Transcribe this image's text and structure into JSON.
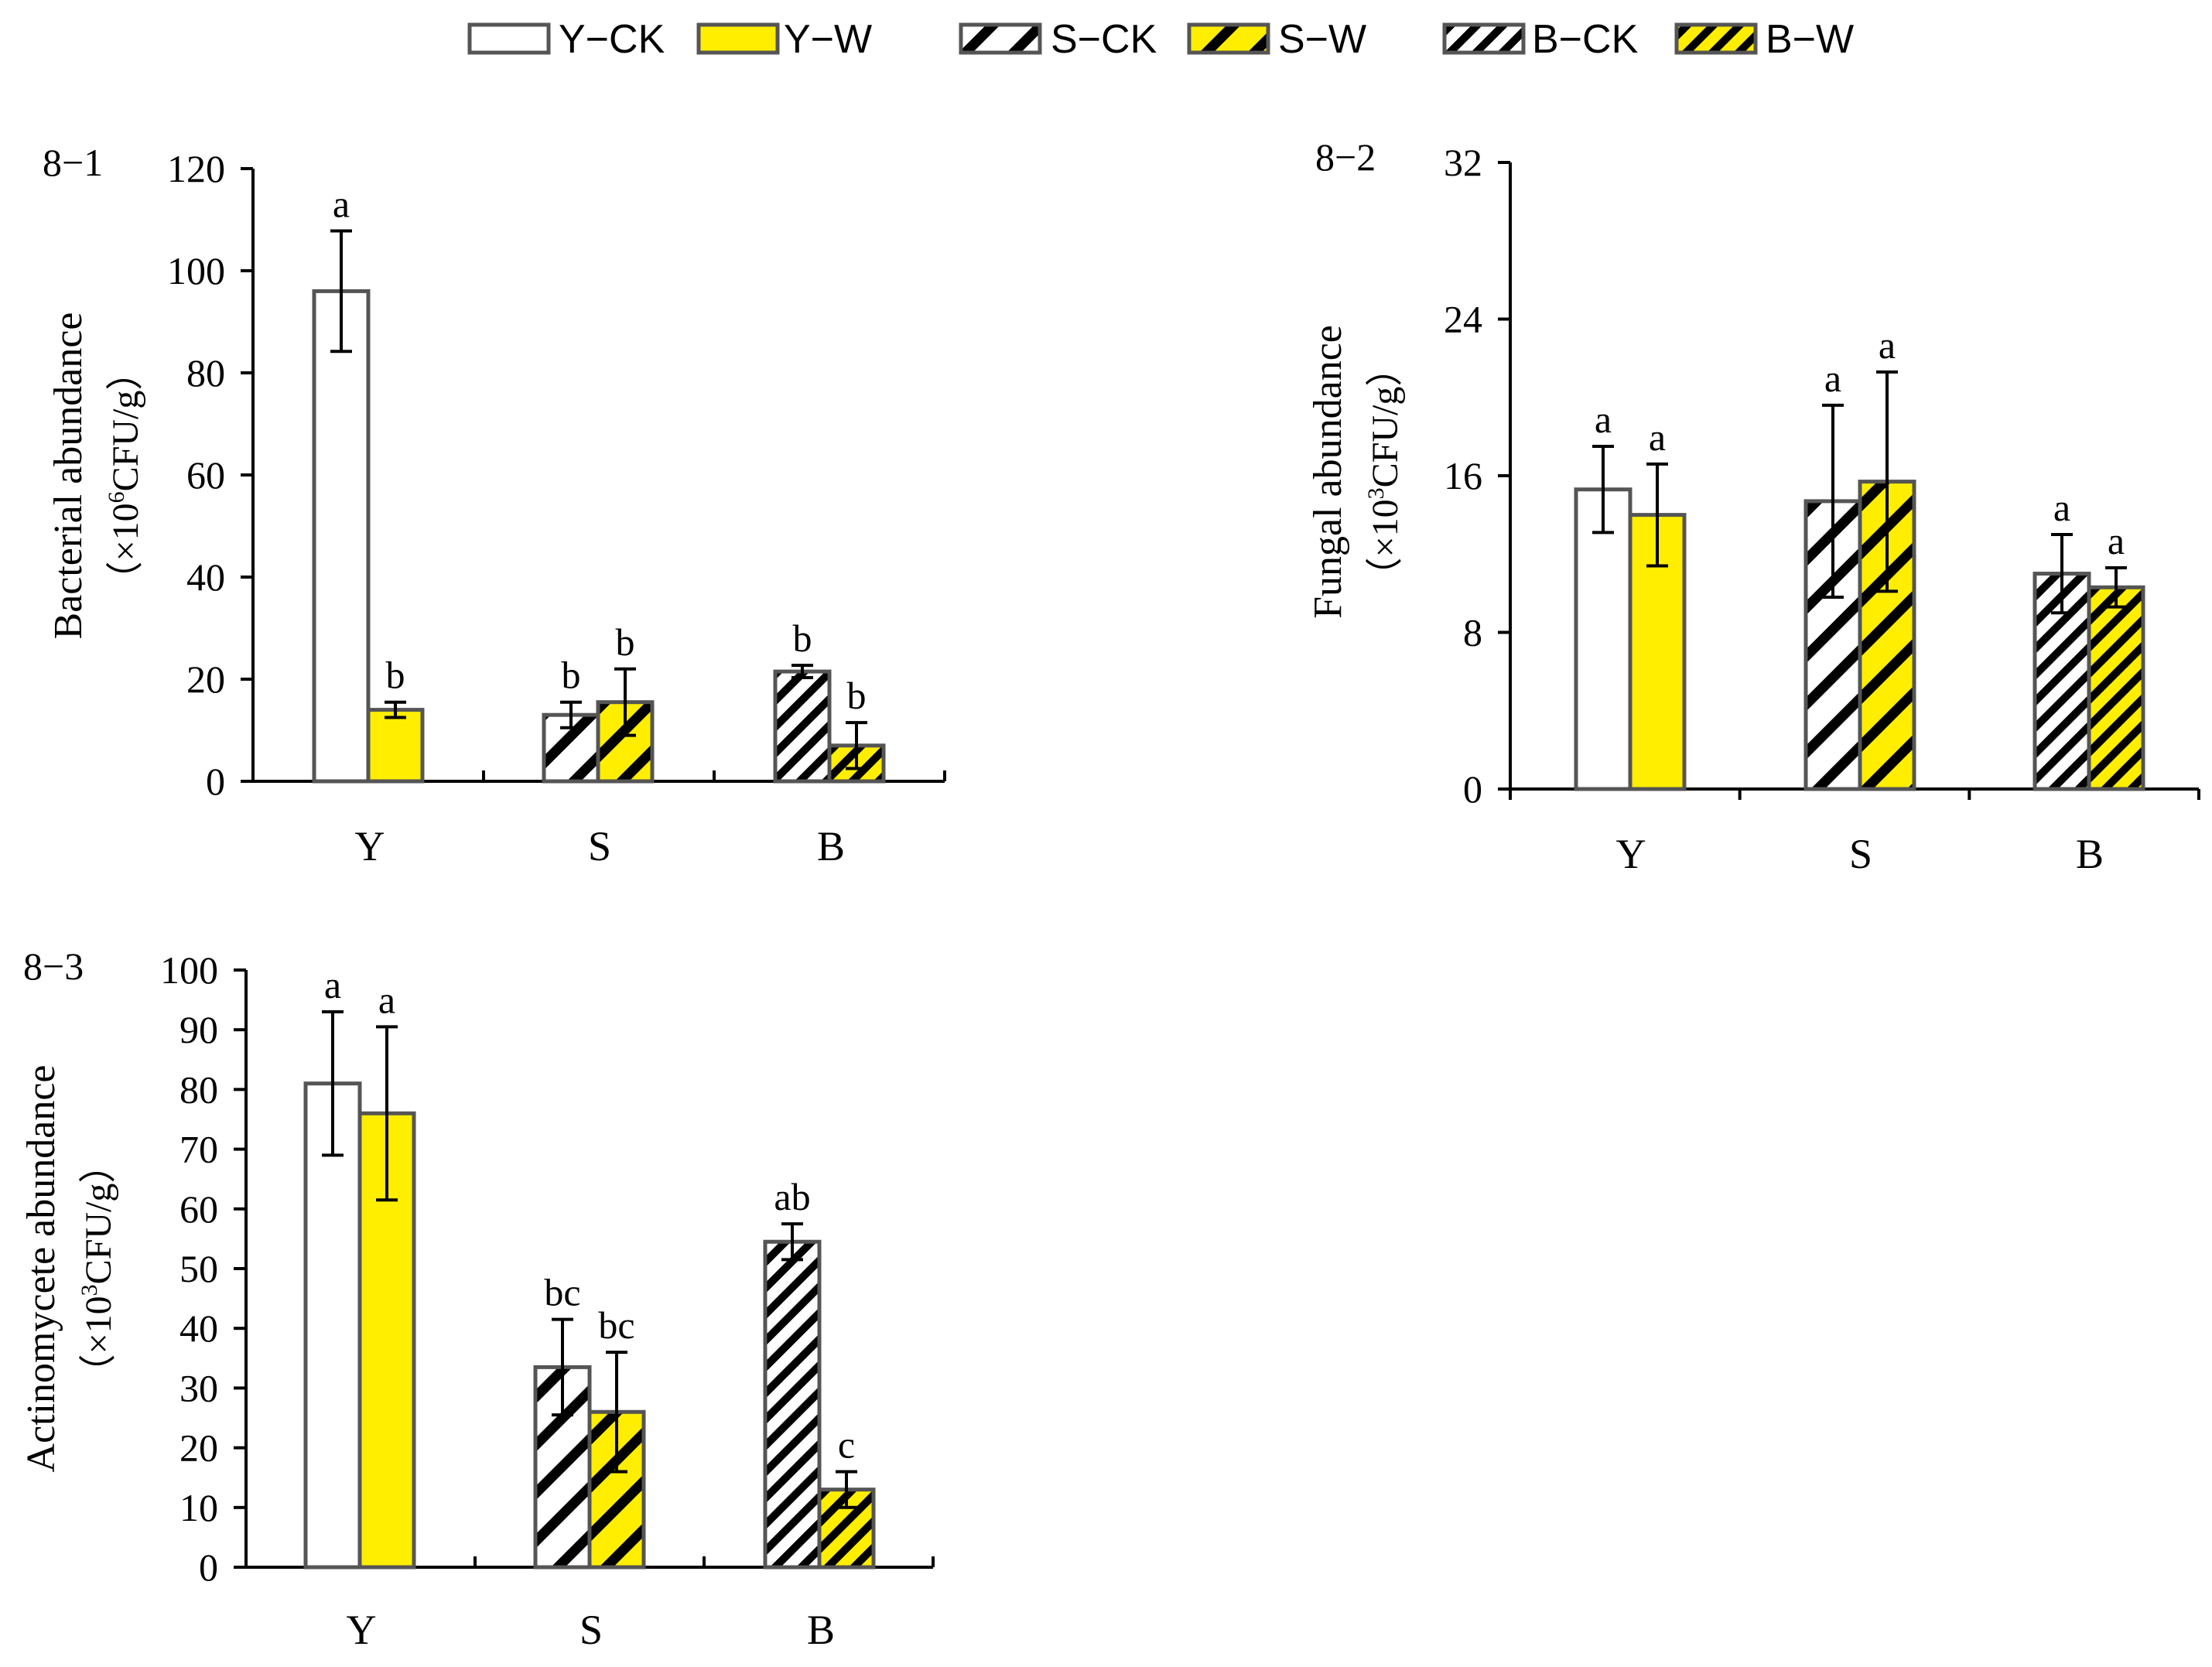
{
  "legend": [
    {
      "label": "Y−CK",
      "fill": "#ffffff",
      "pattern": "none"
    },
    {
      "label": "Y−W",
      "fill": "#ffee00",
      "pattern": "none"
    },
    {
      "label": "S−CK",
      "fill": "#ffffff",
      "pattern": "wide"
    },
    {
      "label": "S−W",
      "fill": "#ffee00",
      "pattern": "wide"
    },
    {
      "label": "B−CK",
      "fill": "#ffffff",
      "pattern": "fine"
    },
    {
      "label": "B−W",
      "fill": "#ffee00",
      "pattern": "fine"
    }
  ],
  "colors": {
    "yellow": "#ffee00",
    "outline": "#555555",
    "axis": "#000000",
    "stripe": "#000000"
  },
  "chart_data": [
    {
      "id": "8-1",
      "panel_label": "8−1",
      "type": "bar",
      "ylabel_line1": "Bacterial abundance",
      "ylabel_line2_prefix": "（×10",
      "ylabel_sup": "6",
      "ylabel_line2_suffix": "CFU/g）",
      "ylim": [
        0,
        120
      ],
      "yticks": [
        0,
        20,
        40,
        60,
        80,
        100,
        120
      ],
      "categories": [
        "Y",
        "S",
        "B"
      ],
      "series": [
        {
          "name": "CK",
          "values": [
            96,
            13,
            21.5
          ],
          "errors": [
            11.8,
            2.5,
            1.2
          ],
          "letters": [
            "a",
            "b",
            "b"
          ]
        },
        {
          "name": "W",
          "values": [
            14,
            15.5,
            7
          ],
          "errors": [
            1.5,
            6.5,
            4.5
          ],
          "letters": [
            "b",
            "b",
            "b"
          ]
        }
      ]
    },
    {
      "id": "8-2",
      "panel_label": "8−2",
      "type": "bar",
      "ylabel_line1": "Fungal abundance",
      "ylabel_line2_prefix": "（×10",
      "ylabel_sup": "3",
      "ylabel_line2_suffix": "CFU/g）",
      "ylim": [
        0,
        32
      ],
      "yticks": [
        0,
        8,
        16,
        24,
        32
      ],
      "categories": [
        "Y",
        "S",
        "B"
      ],
      "series": [
        {
          "name": "CK",
          "values": [
            15.3,
            14.7,
            11
          ],
          "errors": [
            2.2,
            4.9,
            2
          ],
          "letters": [
            "a",
            "a",
            "a"
          ]
        },
        {
          "name": "W",
          "values": [
            14,
            15.7,
            10.3
          ],
          "errors": [
            2.6,
            5.6,
            1
          ],
          "letters": [
            "a",
            "a",
            "a"
          ]
        }
      ]
    },
    {
      "id": "8-3",
      "panel_label": "8−3",
      "type": "bar",
      "ylabel_line1": "Actinomycete abundance",
      "ylabel_line2_prefix": "（×10",
      "ylabel_sup": "3",
      "ylabel_line2_suffix": "CFU/g）",
      "ylim": [
        0,
        100
      ],
      "yticks": [
        0,
        10,
        20,
        30,
        40,
        50,
        60,
        70,
        80,
        90,
        100
      ],
      "categories": [
        "Y",
        "S",
        "B"
      ],
      "series": [
        {
          "name": "CK",
          "values": [
            81,
            33.5,
            54.5
          ],
          "errors": [
            12,
            8,
            3
          ],
          "letters": [
            "a",
            "bc",
            "ab"
          ]
        },
        {
          "name": "W",
          "values": [
            76,
            26,
            13
          ],
          "errors": [
            14.5,
            10,
            3
          ],
          "letters": [
            "a",
            "bc",
            "c"
          ]
        }
      ]
    }
  ]
}
